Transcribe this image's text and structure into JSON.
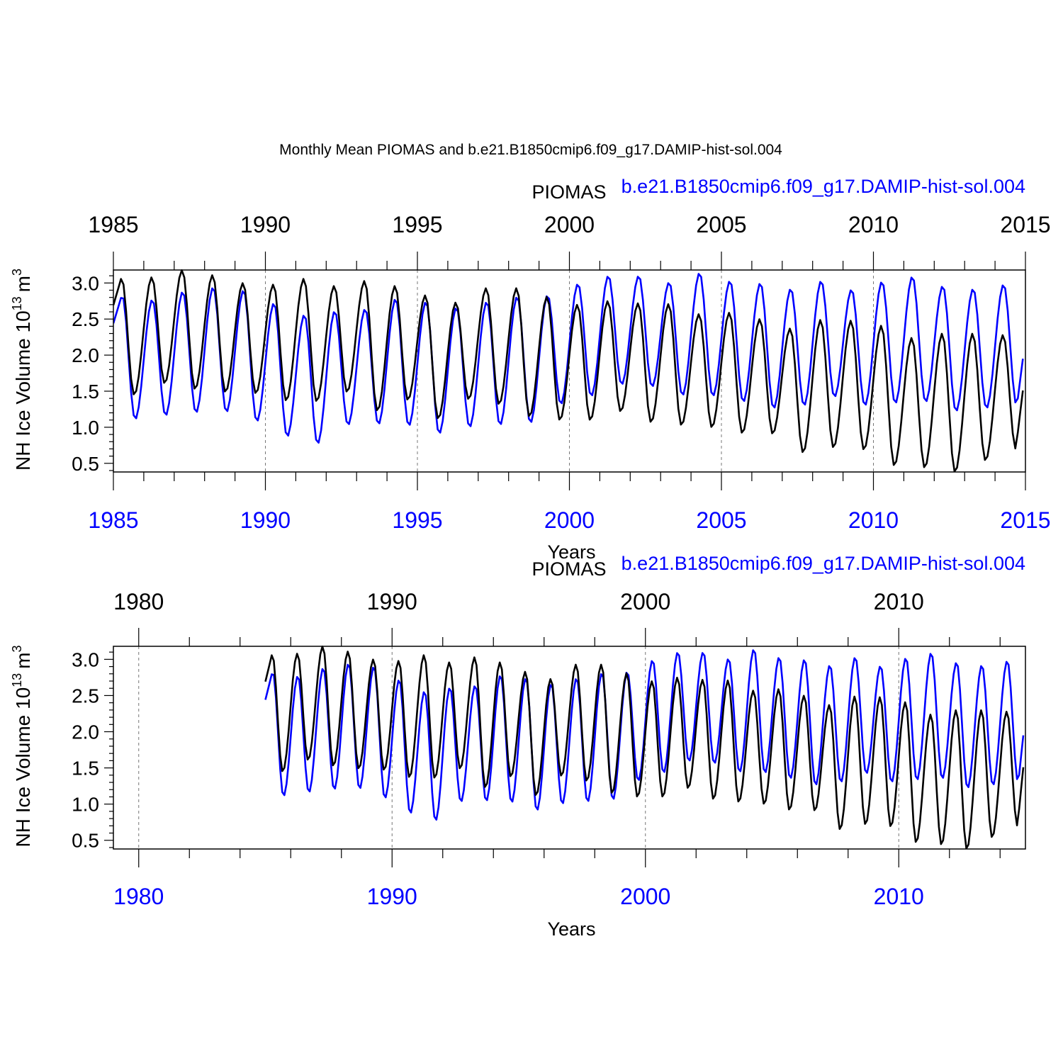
{
  "figure": {
    "title": "Monthly Mean PIOMAS and b.e21.B1850cmip6.f09_g17.DAMIP-hist-sol.004",
    "colors": {
      "piomas": "#000000",
      "model": "#0000ff",
      "grid": "#777777",
      "axis": "#000000"
    }
  },
  "chart_data": [
    {
      "type": "line",
      "label_piomas": "PIOMAS",
      "label_model": "b.e21.B1850cmip6.f09_g17.DAMIP-hist-sol.004",
      "ylabel_main": "NH Ice Volume 10",
      "ylabel_sup": "13",
      "ylabel_unit": "m",
      "ylabel_unit_sup": "3",
      "xlabel": "Years",
      "xlim": [
        1985,
        2015
      ],
      "ylim": [
        0.38,
        3.18
      ],
      "yticks": [
        "0.5",
        "1.0",
        "1.5",
        "2.0",
        "2.5",
        "3.0"
      ],
      "xticks": [
        "1985",
        "1990",
        "1995",
        "2000",
        "2005",
        "2010",
        "2015"
      ],
      "x_start": 1985,
      "piomas_annual": {
        "years": [
          1985,
          1986,
          1987,
          1988,
          1989,
          1990,
          1991,
          1992,
          1993,
          1994,
          1995,
          1996,
          1997,
          1998,
          1999,
          2000,
          2001,
          2002,
          2003,
          2004,
          2005,
          2006,
          2007,
          2008,
          2009,
          2010,
          2011,
          2012,
          2013,
          2014
        ],
        "max": [
          3.08,
          3.08,
          3.18,
          3.11,
          3.0,
          2.98,
          3.06,
          2.96,
          3.03,
          2.96,
          2.83,
          2.73,
          2.93,
          2.93,
          2.81,
          2.7,
          2.75,
          2.72,
          2.71,
          2.57,
          2.59,
          2.5,
          2.37,
          2.49,
          2.48,
          2.41,
          2.24,
          2.3,
          2.3,
          2.28
        ],
        "min": [
          1.45,
          1.61,
          1.53,
          1.49,
          1.47,
          1.37,
          1.36,
          1.49,
          1.23,
          1.38,
          1.12,
          1.39,
          1.32,
          1.15,
          1.1,
          1.1,
          1.22,
          1.07,
          1.03,
          1.0,
          0.92,
          0.91,
          0.65,
          0.72,
          0.69,
          0.47,
          0.44,
          0.38,
          0.54,
          0.7
        ]
      },
      "model_annual": {
        "years": [
          1985,
          1986,
          1987,
          1988,
          1989,
          1990,
          1991,
          1992,
          1993,
          1994,
          1995,
          1996,
          1997,
          1998,
          1999,
          2000,
          2001,
          2002,
          2003,
          2004,
          2005,
          2006,
          2007,
          2008,
          2009,
          2010,
          2011,
          2012,
          2013,
          2014
        ],
        "max": [
          2.84,
          2.77,
          2.88,
          2.94,
          2.9,
          2.72,
          2.56,
          2.61,
          2.64,
          2.78,
          2.74,
          2.66,
          2.74,
          2.81,
          2.83,
          2.99,
          3.1,
          3.1,
          3.01,
          3.14,
          3.03,
          3.0,
          2.92,
          3.03,
          2.91,
          3.02,
          3.09,
          2.96,
          2.92,
          2.98
        ],
        "min": [
          1.11,
          1.16,
          1.2,
          1.21,
          1.08,
          0.87,
          0.77,
          1.03,
          1.04,
          1.02,
          0.91,
          1.0,
          1.03,
          1.06,
          1.32,
          1.43,
          1.59,
          1.56,
          1.44,
          1.43,
          1.35,
          1.26,
          1.3,
          1.42,
          1.3,
          1.33,
          1.35,
          1.22,
          1.26,
          1.29
        ]
      },
      "end_values": {
        "piomas": 1.51,
        "model": 1.95
      }
    },
    {
      "type": "line",
      "label_piomas": "PIOMAS",
      "label_model": "b.e21.B1850cmip6.f09_g17.DAMIP-hist-sol.004",
      "ylabel_main": "NH Ice Volume 10",
      "ylabel_sup": "13",
      "ylabel_unit": "m",
      "ylabel_unit_sup": "3",
      "xlabel": "Years",
      "xlim": [
        1979,
        2015
      ],
      "ylim": [
        0.38,
        3.18
      ],
      "yticks": [
        "0.5",
        "1.0",
        "1.5",
        "2.0",
        "2.5",
        "3.0"
      ],
      "xticks": [
        "1980",
        "1990",
        "2000",
        "2010"
      ],
      "x_start": 1985
    }
  ]
}
